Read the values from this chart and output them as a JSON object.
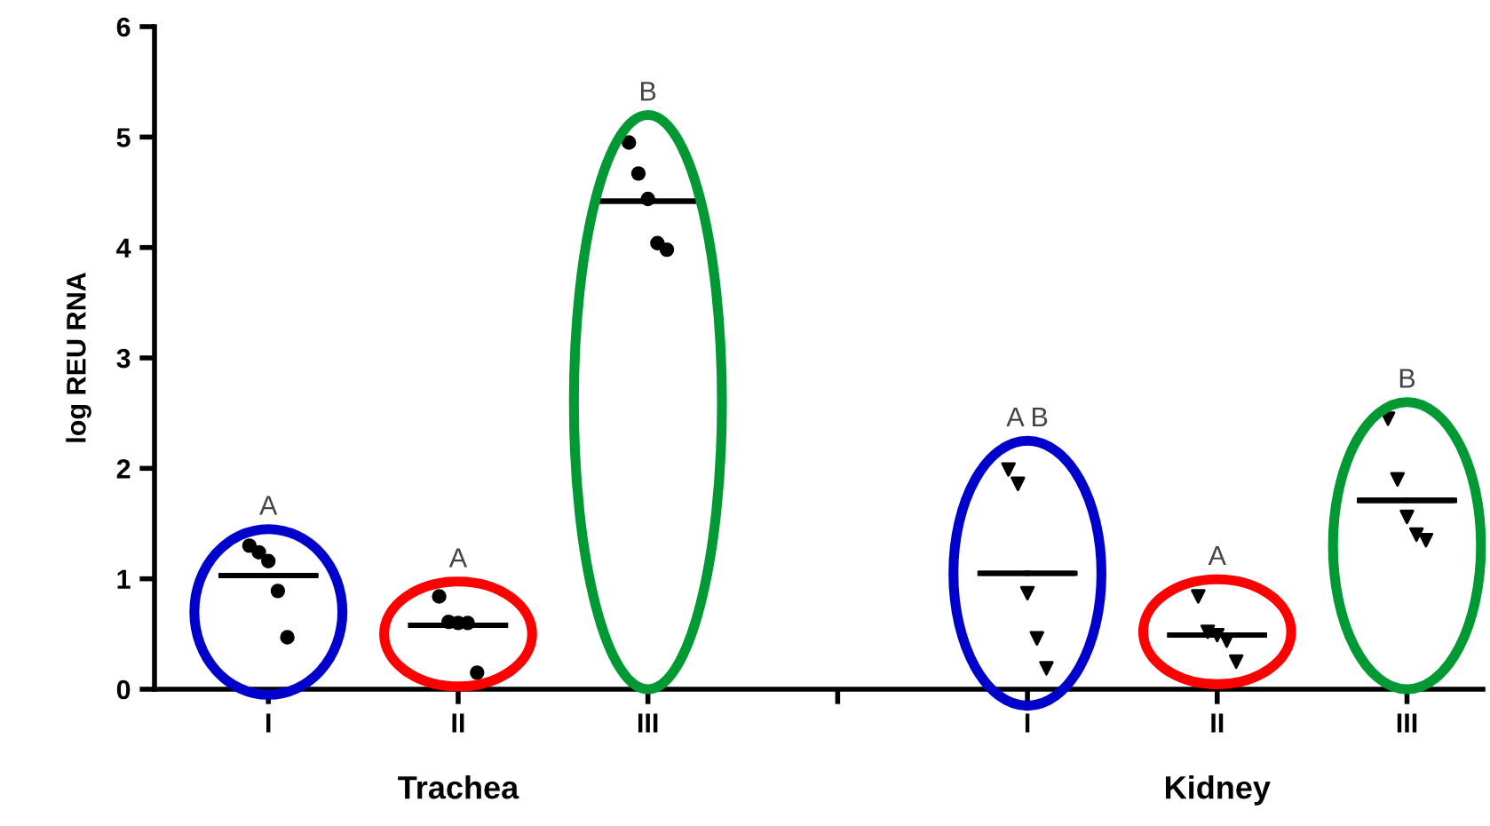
{
  "chart_data": {
    "type": "scatter",
    "ylabel": "log REU RNA",
    "categories": [
      "I",
      "II",
      "III",
      null,
      "I",
      "II",
      "III"
    ],
    "ylim": [
      0,
      6
    ],
    "yticks": [
      0,
      1,
      2,
      3,
      4,
      5,
      6
    ],
    "grid": false,
    "annotations": [
      "A",
      "A",
      "B",
      "A B",
      "A",
      "B",
      "Trachea",
      "Kidney"
    ],
    "series": [
      {
        "marker": "circle",
        "color": "#000000",
        "values": [
          1.3,
          0.84,
          4.95,
          null,
          null,
          null,
          null
        ]
      },
      {
        "marker": "circle",
        "color": "#000000",
        "values": [
          1.24,
          0.61,
          4.67,
          null,
          null,
          null,
          null
        ]
      },
      {
        "marker": "circle",
        "color": "#000000",
        "values": [
          1.16,
          0.6,
          4.44,
          null,
          null,
          null,
          null
        ]
      },
      {
        "marker": "circle",
        "color": "#000000",
        "values": [
          0.89,
          0.6,
          4.04,
          null,
          null,
          null,
          null
        ]
      },
      {
        "marker": "circle",
        "color": "#000000",
        "values": [
          0.47,
          0.15,
          3.98,
          null,
          null,
          null,
          null
        ]
      },
      {
        "marker": "triangle",
        "color": "#000000",
        "values": [
          null,
          null,
          null,
          null,
          1.99,
          0.84,
          2.45
        ]
      },
      {
        "marker": "triangle",
        "color": "#000000",
        "values": [
          null,
          null,
          null,
          null,
          1.86,
          0.52,
          1.9
        ]
      },
      {
        "marker": "triangle",
        "color": "#000000",
        "values": [
          null,
          null,
          null,
          null,
          0.87,
          0.49,
          1.56
        ]
      },
      {
        "marker": "triangle",
        "color": "#000000",
        "values": [
          null,
          null,
          null,
          null,
          0.46,
          0.44,
          1.4
        ]
      },
      {
        "marker": "triangle",
        "color": "#000000",
        "values": [
          null,
          null,
          null,
          null,
          0.19,
          0.25,
          1.35
        ]
      },
      {
        "type": "box",
        "color": "#000000",
        "boxes": [
          {
            "low": 1.03,
            "q1": 1.03,
            "median": 1.03,
            "q3": 1.03,
            "high": 1.03
          },
          {
            "low": 0.58,
            "q1": 0.58,
            "median": 0.58,
            "q3": 0.58,
            "high": 0.58
          },
          {
            "low": 4.42,
            "q1": 4.42,
            "median": 4.42,
            "q3": 4.42,
            "high": 4.42
          },
          null,
          {
            "low": 1.05,
            "q1": 1.05,
            "median": 1.05,
            "q3": 1.05,
            "high": 1.05
          },
          {
            "low": 0.49,
            "q1": 0.49,
            "median": 0.49,
            "q3": 0.49,
            "high": 0.49
          },
          {
            "low": 1.71,
            "q1": 1.71,
            "median": 1.71,
            "q3": 1.71,
            "high": 1.71
          }
        ]
      }
    ]
  }
}
